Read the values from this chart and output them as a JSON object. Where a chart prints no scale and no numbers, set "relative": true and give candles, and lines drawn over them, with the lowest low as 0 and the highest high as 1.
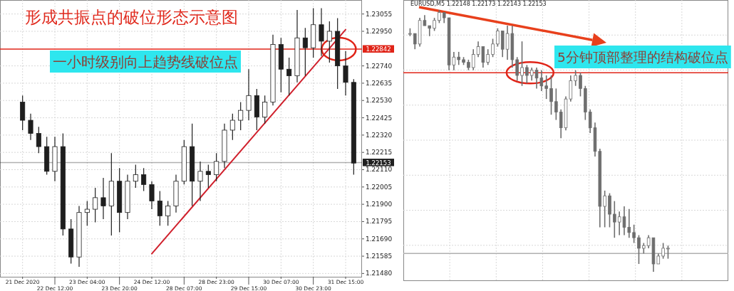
{
  "chart_data": [
    {
      "type": "candlestick",
      "title": "形成共振点的破位形态示意图",
      "categories": [
        "21 Dec 2020",
        null,
        null,
        null,
        "22 Dec 12:00",
        null,
        null,
        null,
        "23 Dec 04:00",
        null,
        null,
        null,
        "23 Dec 20:00",
        null,
        null,
        null,
        "24 Dec 12:00",
        null,
        null,
        null,
        "28 Dec 07:00",
        null,
        null,
        null,
        "28 Dec 23:00",
        null,
        null,
        null,
        "29 Dec 15:00",
        null,
        null,
        null,
        "30 Dec 07:00",
        null,
        null,
        null,
        "30 Dec 23:00",
        null,
        null,
        null,
        "31 Dec 15:00",
        null
      ],
      "ohlc": [
        [
          1.2252,
          1.2256,
          1.2235,
          1.2241
        ],
        [
          1.2241,
          1.2245,
          1.2229,
          1.2233
        ],
        [
          1.2233,
          1.2237,
          1.2221,
          1.2225
        ],
        [
          1.2225,
          1.2231,
          1.2208,
          1.221
        ],
        [
          1.221,
          1.2231,
          1.2204,
          1.2225
        ],
        [
          1.2225,
          1.2233,
          1.2171,
          1.2175
        ],
        [
          1.2175,
          1.2181,
          1.2154,
          1.2158
        ],
        [
          1.2158,
          1.2189,
          1.2152,
          1.2185
        ],
        [
          1.2185,
          1.2192,
          1.2177,
          1.2187
        ],
        [
          1.2187,
          1.22,
          1.2179,
          1.2194
        ],
        [
          1.2194,
          1.2206,
          1.2181,
          1.2189
        ],
        [
          1.2189,
          1.2221,
          1.2171,
          1.2204
        ],
        [
          1.2204,
          1.2212,
          1.2173,
          1.2185
        ],
        [
          1.2185,
          1.2208,
          1.2181,
          1.2204
        ],
        [
          1.2204,
          1.2214,
          1.22,
          1.2208
        ],
        [
          1.2208,
          1.2212,
          1.2198,
          1.2202
        ],
        [
          1.2202,
          1.2204,
          1.2187,
          1.2192
        ],
        [
          1.2192,
          1.2198,
          1.2177,
          1.2183
        ],
        [
          1.2183,
          1.2192,
          1.2177,
          1.2189
        ],
        [
          1.2189,
          1.2208,
          1.2185,
          1.2204
        ],
        [
          1.2204,
          1.2229,
          1.2202,
          1.2225
        ],
        [
          1.2225,
          1.2239,
          1.2189,
          1.2204
        ],
        [
          1.2204,
          1.2216,
          1.2192,
          1.221
        ],
        [
          1.221,
          1.2214,
          1.22,
          1.2208
        ],
        [
          1.2208,
          1.2221,
          1.2204,
          1.2216
        ],
        [
          1.2216,
          1.2239,
          1.2212,
          1.2235
        ],
        [
          1.2235,
          1.2245,
          1.2229,
          1.2241
        ],
        [
          1.2241,
          1.2252,
          1.2235,
          1.2247
        ],
        [
          1.2247,
          1.2272,
          1.2241,
          1.2256
        ],
        [
          1.2256,
          1.226,
          1.2235,
          1.2243
        ],
        [
          1.2243,
          1.2256,
          1.2239,
          1.2252
        ],
        [
          1.2252,
          1.2293,
          1.225,
          1.2287
        ],
        [
          1.2287,
          1.2291,
          1.2258,
          1.2272
        ],
        [
          1.2272,
          1.2279,
          1.2256,
          1.2268
        ],
        [
          1.2268,
          1.2308,
          1.2264,
          1.2291
        ],
        [
          1.2291,
          1.2297,
          1.2268,
          1.2285
        ],
        [
          1.2285,
          1.2309,
          1.2279,
          1.2299
        ],
        [
          1.2299,
          1.2309,
          1.228,
          1.2289
        ],
        [
          1.2289,
          1.2301,
          1.2276,
          1.2295
        ],
        [
          1.2295,
          1.2303,
          1.226,
          1.2274
        ],
        [
          1.2274,
          1.2283,
          1.2256,
          1.2264
        ],
        [
          1.2264,
          1.2266,
          1.2208,
          1.2215
        ]
      ],
      "series": [
        {
          "type": "line",
          "x": [
            "24 Dec 12:00",
            "31 Dec 15:00"
          ],
          "values": [
            1.216,
            1.2296
          ],
          "color": "#d0202c"
        }
      ],
      "ylim": [
        1.2146,
        1.2314
      ],
      "yticks": [
        1.23055,
        {
          "value": 1.2295,
          "label": "1.22950"
        },
        {
          "value": 1.2274,
          "label": "1.22740"
        },
        1.22635,
        {
          "value": 1.2253,
          "label": "1.22530"
        },
        1.22425,
        {
          "value": 1.2232,
          "label": "1.22320"
        },
        1.22215,
        {
          "value": 1.2211,
          "label": "1.22110"
        },
        1.22005,
        {
          "value": 1.219,
          "label": "1.21900"
        },
        1.21795,
        {
          "value": 1.2169,
          "label": "1.21690"
        },
        1.21585,
        {
          "value": 1.2148,
          "label": "1.21480"
        }
      ],
      "ref_lines": [
        {
          "axis": "y",
          "value": 1.22842,
          "label": "1.22842",
          "color": "#e02418"
        },
        {
          "axis": "y",
          "value": 1.22153,
          "label": "1.22153",
          "color": "#202020"
        }
      ],
      "annotations": [
        "一小时级别向上趋势线破位点"
      ],
      "grid": true
    },
    {
      "type": "candlestick",
      "relative": true,
      "categories": [
        null,
        null,
        null,
        null,
        null,
        null,
        null,
        null,
        null,
        null,
        null,
        null,
        null,
        null,
        null,
        null,
        null,
        null,
        null,
        null,
        null,
        null,
        null,
        null,
        null,
        null,
        null,
        null,
        null,
        null,
        null,
        null,
        null,
        null,
        null,
        null,
        null,
        null,
        null,
        null,
        null,
        null,
        null,
        null,
        null,
        null,
        null,
        null,
        null,
        null,
        null,
        null,
        null,
        null,
        null,
        null,
        null,
        null,
        null,
        null,
        null,
        null,
        null,
        null,
        null
      ],
      "ohlc": [
        [
          0.91,
          0.93,
          0.9,
          0.91
        ],
        [
          0.91,
          0.91,
          0.85,
          0.87
        ],
        [
          0.87,
          0.97,
          0.86,
          0.96
        ],
        [
          0.96,
          0.98,
          0.94,
          0.94
        ],
        [
          0.94,
          0.94,
          0.9,
          0.93
        ],
        [
          0.93,
          0.97,
          0.92,
          0.96
        ],
        [
          0.96,
          1.0,
          0.95,
          0.99
        ],
        [
          0.99,
          0.99,
          0.95,
          0.97
        ],
        [
          0.97,
          0.97,
          0.77,
          0.79
        ],
        [
          0.79,
          0.84,
          0.77,
          0.82
        ],
        [
          0.82,
          0.84,
          0.79,
          0.81
        ],
        [
          0.81,
          0.82,
          0.79,
          0.8
        ],
        [
          0.8,
          0.81,
          0.77,
          0.78
        ],
        [
          0.78,
          0.85,
          0.77,
          0.83
        ],
        [
          0.83,
          0.88,
          0.82,
          0.86
        ],
        [
          0.86,
          0.86,
          0.78,
          0.8
        ],
        [
          0.8,
          0.85,
          0.79,
          0.83
        ],
        [
          0.83,
          0.89,
          0.82,
          0.87
        ],
        [
          0.87,
          0.93,
          0.86,
          0.92
        ],
        [
          0.92,
          0.92,
          0.82,
          0.85
        ],
        [
          0.85,
          0.94,
          0.81,
          0.91
        ],
        [
          0.91,
          0.94,
          0.78,
          0.81
        ],
        [
          0.81,
          0.82,
          0.73,
          0.75
        ],
        [
          0.75,
          0.88,
          0.71,
          0.78
        ],
        [
          0.78,
          0.79,
          0.72,
          0.75
        ],
        [
          0.75,
          0.78,
          0.73,
          0.77
        ],
        [
          0.77,
          0.78,
          0.7,
          0.74
        ],
        [
          0.74,
          0.77,
          0.69,
          0.71
        ],
        [
          0.71,
          0.75,
          0.66,
          0.7
        ],
        [
          0.7,
          0.75,
          0.6,
          0.65
        ],
        [
          0.65,
          0.7,
          0.58,
          0.61
        ],
        [
          0.61,
          0.62,
          0.51,
          0.55
        ],
        [
          0.55,
          0.67,
          0.54,
          0.66
        ],
        [
          0.66,
          0.75,
          0.65,
          0.73
        ],
        [
          0.73,
          0.77,
          0.71,
          0.75
        ],
        [
          0.75,
          0.76,
          0.67,
          0.7
        ],
        [
          0.7,
          0.71,
          0.58,
          0.61
        ],
        [
          0.61,
          0.62,
          0.53,
          0.55
        ],
        [
          0.55,
          0.57,
          0.44,
          0.46
        ],
        [
          0.46,
          0.47,
          0.17,
          0.25
        ],
        [
          0.25,
          0.31,
          0.17,
          0.29
        ],
        [
          0.29,
          0.3,
          0.17,
          0.22
        ],
        [
          0.22,
          0.27,
          0.13,
          0.19
        ],
        [
          0.19,
          0.23,
          0.14,
          0.21
        ],
        [
          0.21,
          0.25,
          0.14,
          0.17
        ],
        [
          0.17,
          0.24,
          0.13,
          0.15
        ],
        [
          0.15,
          0.18,
          0.11,
          0.13
        ],
        [
          0.13,
          0.14,
          0.03,
          0.09
        ],
        [
          0.09,
          0.11,
          0.07,
          0.1
        ],
        [
          0.1,
          0.14,
          0.09,
          0.13
        ],
        [
          0.13,
          0.13,
          0.0,
          0.03
        ],
        [
          0.03,
          0.07,
          0.03,
          0.06
        ],
        [
          0.06,
          0.11,
          0.05,
          0.09
        ],
        [
          0.09,
          0.1,
          0.05,
          0.09
        ],
        null,
        null,
        null,
        null,
        null,
        null,
        null,
        null,
        null,
        null,
        null
      ],
      "ref_lines": [
        {
          "axis": "y",
          "value": 0.76,
          "color": "#e02418"
        },
        {
          "axis": "y",
          "value": 0.07,
          "color": "#b0b0b0"
        }
      ],
      "annotations": [
        "EURUSD,M5  1.22148 1.22173 1.22143 1.22153",
        "5分钟顶部整理的结构破位点"
      ],
      "grid": true
    }
  ]
}
